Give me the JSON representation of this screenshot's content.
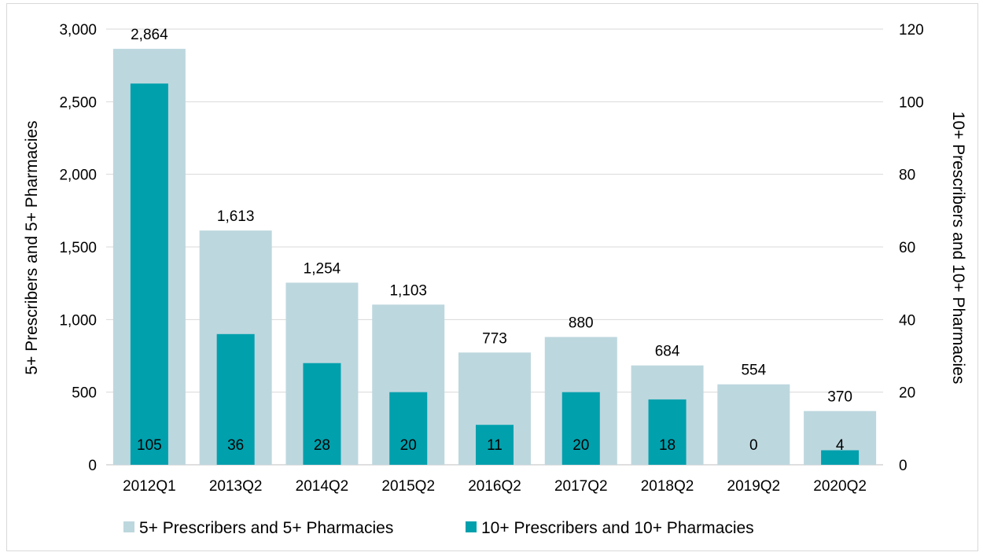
{
  "chart_data": {
    "type": "bar",
    "categories": [
      "2012Q1",
      "2013Q2",
      "2014Q2",
      "2015Q2",
      "2016Q2",
      "2017Q2",
      "2018Q2",
      "2019Q2",
      "2020Q2"
    ],
    "series": [
      {
        "name": "5+ Prescribers and 5+ Pharmacies",
        "axis": "left",
        "color": "#bdd7de",
        "values": [
          2864,
          1613,
          1254,
          1103,
          773,
          880,
          684,
          554,
          370
        ],
        "labels": [
          "2,864",
          "1,613",
          "1,254",
          "1,103",
          "773",
          "880",
          "684",
          "554",
          "370"
        ]
      },
      {
        "name": "10+ Prescribers and 10+ Pharmacies",
        "axis": "right",
        "color": "#00a0ad",
        "values": [
          105,
          36,
          28,
          20,
          11,
          20,
          18,
          0,
          4
        ],
        "labels": [
          "105",
          "36",
          "28",
          "20",
          "11",
          "20",
          "18",
          "0",
          "4"
        ]
      }
    ],
    "y_left": {
      "label": "5+ Prescribers and 5+ Pharmacies",
      "ylim": [
        0,
        3000
      ],
      "ticks": [
        0,
        500,
        1000,
        1500,
        2000,
        2500,
        3000
      ],
      "tick_labels": [
        "0",
        "500",
        "1,000",
        "1,500",
        "2,000",
        "2,500",
        "3,000"
      ]
    },
    "y_right": {
      "label": "10+ Prescribers and 10+ Pharmacies",
      "ylim": [
        0,
        120
      ],
      "ticks": [
        0,
        20,
        40,
        60,
        80,
        100,
        120
      ],
      "tick_labels": [
        "0",
        "20",
        "40",
        "60",
        "80",
        "100",
        "120"
      ]
    },
    "grid": true,
    "legend_position": "bottom"
  }
}
